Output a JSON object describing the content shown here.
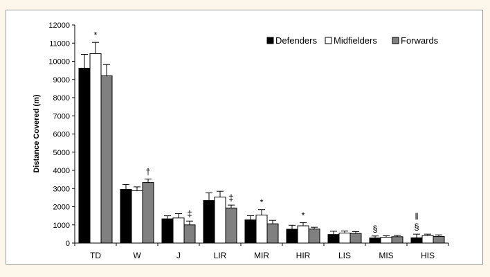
{
  "chart_data": {
    "type": "bar",
    "title": "",
    "xlabel": "",
    "ylabel": "Distance Covered (m)",
    "ylim": [
      0,
      12000
    ],
    "ytick_step": 1000,
    "grid": false,
    "legend_position": "top-right",
    "categories": [
      "TD",
      "W",
      "J",
      "LIR",
      "MIR",
      "HIR",
      "LIS",
      "MIS",
      "HIS"
    ],
    "series": [
      {
        "name": "Defenders",
        "color": "#000000",
        "values": [
          9620,
          2950,
          1330,
          2340,
          1280,
          760,
          470,
          280,
          290
        ],
        "errors": [
          760,
          270,
          170,
          420,
          230,
          220,
          180,
          110,
          200
        ]
      },
      {
        "name": "Midfielders",
        "color": "#ffffff",
        "values": [
          10420,
          2880,
          1380,
          2530,
          1540,
          950,
          550,
          320,
          410
        ],
        "errors": [
          620,
          210,
          240,
          320,
          300,
          170,
          110,
          80,
          80
        ]
      },
      {
        "name": "Forwards",
        "color": "#808080",
        "values": [
          9200,
          3330,
          1000,
          1930,
          1060,
          770,
          530,
          350,
          360
        ],
        "errors": [
          620,
          190,
          210,
          160,
          190,
          100,
          100,
          70,
          90
        ]
      }
    ],
    "annotations": [
      {
        "category": "TD",
        "series": "Midfielders",
        "text": "*"
      },
      {
        "category": "W",
        "series": "Forwards",
        "text": "†"
      },
      {
        "category": "J",
        "series": "Forwards",
        "text": "‡"
      },
      {
        "category": "LIR",
        "series": "Forwards",
        "text": "‡"
      },
      {
        "category": "MIR",
        "series": "Midfielders",
        "text": "*"
      },
      {
        "category": "HIR",
        "series": "Midfielders",
        "text": "*"
      },
      {
        "category": "MIS",
        "series": "Defenders",
        "text": "§"
      },
      {
        "category": "HIS",
        "series": "Defenders",
        "text": "§"
      },
      {
        "category": "HIS",
        "series": "Defenders",
        "text": "‖",
        "stack": 1
      }
    ]
  }
}
